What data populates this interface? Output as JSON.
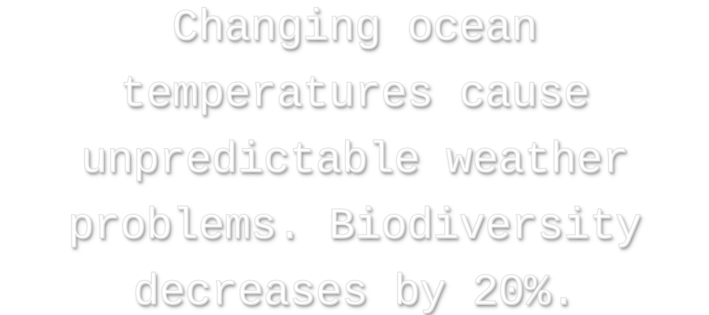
{
  "caption": {
    "lines": [
      "Changing ocean",
      "temperatures cause",
      "unpredictable weather",
      "problems. Biodiversity",
      "decreases by 20%."
    ]
  },
  "colors": {
    "background": "#ffffff",
    "text_fill": "#ffffff",
    "text_outline": "#e2e2e2"
  }
}
